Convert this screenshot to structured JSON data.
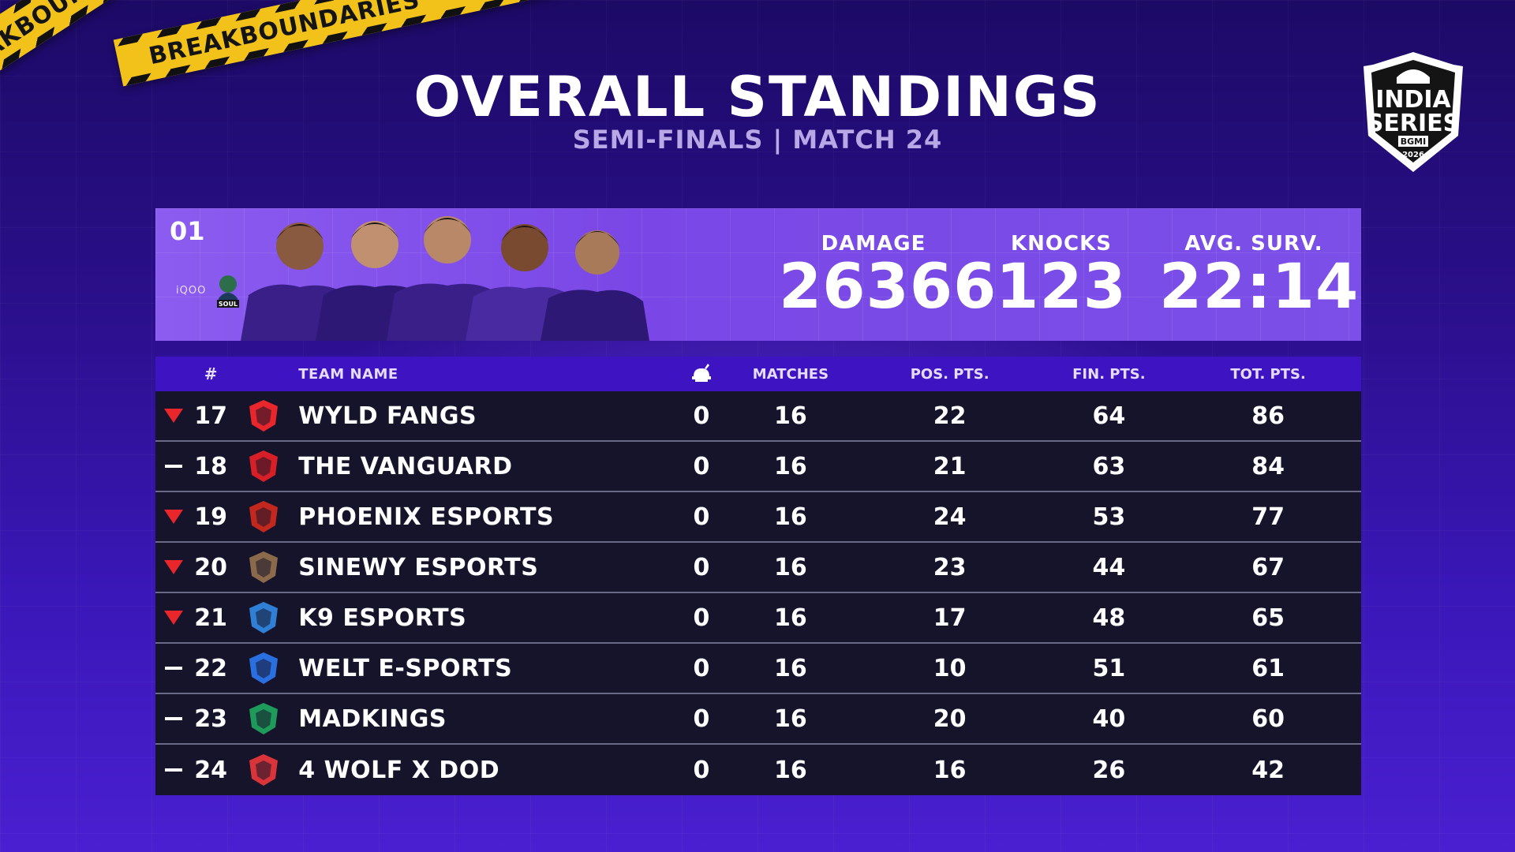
{
  "tapes": {
    "primary_text": "BREAKBOUNDARIES",
    "secondary_text": "BREAKBOUNDARIES"
  },
  "header": {
    "title": "OVERALL STANDINGS",
    "subtitle": "SEMI-FINALS | MATCH 24"
  },
  "logo": {
    "line1": "INDIA",
    "line2": "SERIES",
    "badge": "BGMI",
    "year": "2026"
  },
  "top_team": {
    "rank": "01",
    "sponsor": "iQOO",
    "team_logo_text": "SOUL",
    "damage_label": "DAMAGE",
    "damage_value": "26366",
    "knocks_label": "KNOCKS",
    "knocks_value": "123",
    "surv_label": "AVG. SURV.",
    "surv_value": "22:14"
  },
  "table": {
    "headers": {
      "rank": "#",
      "team": "TEAM NAME",
      "elims_icon": "chicken-icon",
      "matches": "MATCHES",
      "pos": "POS. PTS.",
      "fin": "FIN. PTS.",
      "tot": "TOT. PTS."
    },
    "rows": [
      {
        "trend": "down",
        "rank": "17",
        "logo": "wyld-fangs-logo",
        "name": "WYLD FANGS",
        "wins": "0",
        "matches": "16",
        "pos": "22",
        "fin": "64",
        "tot": "86",
        "color": "#e8262b"
      },
      {
        "trend": "same",
        "rank": "18",
        "logo": "the-vanguard-logo",
        "name": "THE VANGUARD",
        "wins": "0",
        "matches": "16",
        "pos": "21",
        "fin": "63",
        "tot": "84",
        "color": "#d61f26"
      },
      {
        "trend": "down",
        "rank": "19",
        "logo": "phoenix-esports-logo",
        "name": "PHOENIX ESPORTS",
        "wins": "0",
        "matches": "16",
        "pos": "24",
        "fin": "53",
        "tot": "77",
        "color": "#c2281d"
      },
      {
        "trend": "down",
        "rank": "20",
        "logo": "sinewy-esports-logo",
        "name": "SINEWY ESPORTS",
        "wins": "0",
        "matches": "16",
        "pos": "23",
        "fin": "44",
        "tot": "67",
        "color": "#8a6a4a"
      },
      {
        "trend": "down",
        "rank": "21",
        "logo": "k9-esports-logo",
        "name": "K9 ESPORTS",
        "wins": "0",
        "matches": "16",
        "pos": "17",
        "fin": "48",
        "tot": "65",
        "color": "#2f7fd6"
      },
      {
        "trend": "same",
        "rank": "22",
        "logo": "welt-esports-logo",
        "name": "WELT E-SPORTS",
        "wins": "0",
        "matches": "16",
        "pos": "10",
        "fin": "51",
        "tot": "61",
        "color": "#2a6fe0"
      },
      {
        "trend": "same",
        "rank": "23",
        "logo": "madkings-logo",
        "name": "MADKINGS",
        "wins": "0",
        "matches": "16",
        "pos": "20",
        "fin": "40",
        "tot": "60",
        "color": "#1e9a5a"
      },
      {
        "trend": "same",
        "rank": "24",
        "logo": "4-wolf-x-dod-logo",
        "name": "4 WOLF X DOD",
        "wins": "0",
        "matches": "16",
        "pos": "16",
        "fin": "26",
        "tot": "42",
        "color": "#d8343a"
      }
    ]
  },
  "colors": {
    "accent": "#7a47e6",
    "header_bar": "#3e13c2",
    "row_bg": "#16142a",
    "down_arrow": "#e8262b",
    "tape": "#f2c21b"
  }
}
